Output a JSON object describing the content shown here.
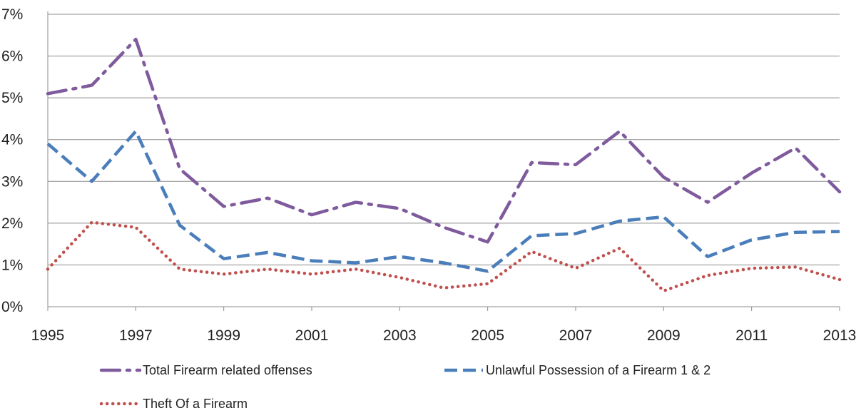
{
  "chart_data": {
    "type": "line",
    "title": "",
    "xlabel": "",
    "ylabel": "",
    "x": [
      1995,
      1996,
      1997,
      1998,
      1999,
      2000,
      2001,
      2002,
      2003,
      2004,
      2005,
      2006,
      2007,
      2008,
      2009,
      2010,
      2011,
      2012,
      2013
    ],
    "x_tick_labels": [
      "1995",
      "1997",
      "1999",
      "2001",
      "2003",
      "2005",
      "2007",
      "2009",
      "2011",
      "2013"
    ],
    "y_tick_labels": [
      "0%",
      "1%",
      "2%",
      "3%",
      "4%",
      "5%",
      "6%",
      "7%"
    ],
    "ylim": [
      0,
      7
    ],
    "y_unit": "%",
    "grid": true,
    "legend_position": "bottom",
    "series": [
      {
        "name": "Total Firearm related offenses",
        "style": "dash-dot",
        "color": "#7f5b9e",
        "values": [
          5.1,
          5.3,
          6.4,
          3.3,
          2.4,
          2.6,
          2.2,
          2.5,
          2.35,
          1.9,
          1.55,
          3.45,
          3.4,
          4.2,
          3.1,
          2.5,
          3.2,
          3.8,
          2.75
        ]
      },
      {
        "name": "Unlawful Possession of a Firearm 1 & 2",
        "style": "dashed",
        "color": "#4a7ebb",
        "values": [
          3.9,
          3.0,
          4.2,
          1.95,
          1.15,
          1.3,
          1.1,
          1.05,
          1.2,
          1.05,
          0.85,
          1.7,
          1.75,
          2.05,
          2.15,
          1.2,
          1.6,
          1.78,
          1.8
        ]
      },
      {
        "name": "Theft Of a Firearm",
        "style": "dotted",
        "color": "#c0504d",
        "values": [
          0.9,
          2.02,
          1.9,
          0.9,
          0.78,
          0.9,
          0.78,
          0.9,
          0.7,
          0.45,
          0.55,
          1.32,
          0.92,
          1.4,
          0.38,
          0.75,
          0.92,
          0.95,
          0.65
        ]
      }
    ]
  }
}
